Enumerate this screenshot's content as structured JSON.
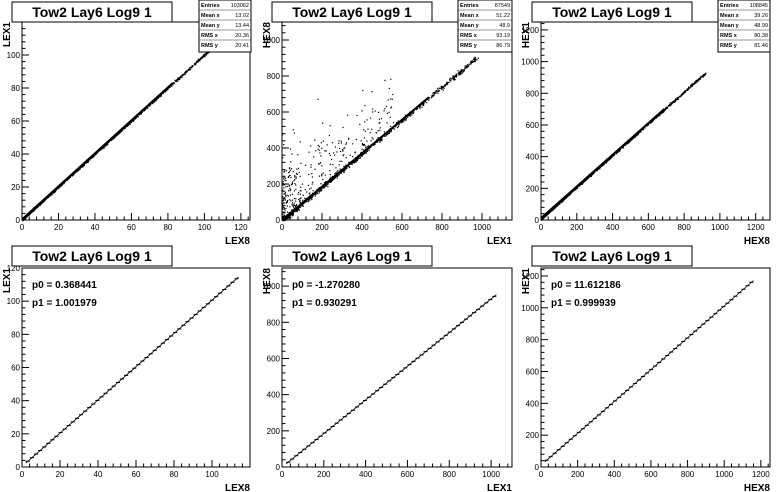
{
  "chart_data": [
    {
      "type": "scatter",
      "title": "Tow2 Lay6 Log9 1",
      "xlabel": "LEX8",
      "ylabel": "LEX1",
      "xlim": [
        0,
        125
      ],
      "ylim": [
        0,
        120
      ],
      "xticks": [
        0,
        20,
        40,
        60,
        80,
        100,
        120
      ],
      "yticks": [
        0,
        20,
        40,
        60,
        80,
        100
      ],
      "stats": [
        {
          "label": "Entries",
          "value": "103062"
        },
        {
          "label": "Mean x",
          "value": "13.02"
        },
        {
          "label": "Mean y",
          "value": "13.44"
        },
        {
          "label": "RMS x",
          "value": "20.36"
        },
        {
          "label": "RMS y",
          "value": "20.41"
        }
      ],
      "trend": {
        "slope": 1.0,
        "intercept": 0.4,
        "x_range": [
          0,
          110
        ]
      }
    },
    {
      "type": "scatter",
      "title": "Tow2 Lay6 Log9 1",
      "xlabel": "LEX1",
      "ylabel": "HEX8",
      "xlim": [
        0,
        1150
      ],
      "ylim": [
        0,
        1100
      ],
      "xticks": [
        0,
        200,
        400,
        600,
        800,
        1000
      ],
      "yticks": [
        0,
        200,
        400,
        600,
        800,
        1000
      ],
      "stats": [
        {
          "label": "Entries",
          "value": "87549"
        },
        {
          "label": "Mean x",
          "value": "51.22"
        },
        {
          "label": "Mean y",
          "value": "48.9"
        },
        {
          "label": "RMS x",
          "value": "93.19"
        },
        {
          "label": "RMS y",
          "value": "86.79"
        }
      ],
      "trend": {
        "slope": 0.93,
        "intercept": -1.3,
        "x_range": [
          0,
          980
        ]
      }
    },
    {
      "type": "scatter",
      "title": "Tow2 Lay6 Log9 1",
      "xlabel": "HEX8",
      "ylabel": "HEX1",
      "xlim": [
        0,
        1280
      ],
      "ylim": [
        0,
        1250
      ],
      "xticks": [
        0,
        200,
        400,
        600,
        800,
        1000,
        1200
      ],
      "yticks": [
        0,
        200,
        400,
        600,
        800,
        1000,
        1200
      ],
      "stats": [
        {
          "label": "Entries",
          "value": "108845"
        },
        {
          "label": "Mean x",
          "value": "39.26"
        },
        {
          "label": "Mean y",
          "value": "48.99"
        },
        {
          "label": "RMS x",
          "value": "80.38"
        },
        {
          "label": "RMS y",
          "value": "81.46"
        }
      ],
      "trend": {
        "slope": 1.0,
        "intercept": 11.6,
        "x_range": [
          0,
          920
        ]
      }
    },
    {
      "type": "line",
      "title": "Tow2 Lay6 Log9 1",
      "xlabel": "LEX8",
      "ylabel": "LEX1",
      "xlim": [
        0,
        120
      ],
      "ylim": [
        0,
        120
      ],
      "xticks": [
        0,
        20,
        40,
        60,
        80,
        100
      ],
      "yticks": [
        0,
        20,
        40,
        60,
        80,
        100,
        120
      ],
      "fit": [
        {
          "label": "p0",
          "value": "0.368441"
        },
        {
          "label": "p1",
          "value": "1.001979"
        }
      ],
      "series": [
        {
          "p0": 0.368441,
          "p1": 1.001979,
          "x_range": [
            2,
            114
          ]
        }
      ]
    },
    {
      "type": "line",
      "title": "Tow2 Lay6 Log9 1",
      "xlabel": "LEX1",
      "ylabel": "HEX8",
      "xlim": [
        0,
        1100
      ],
      "ylim": [
        0,
        1100
      ],
      "xticks": [
        0,
        200,
        400,
        600,
        800,
        1000
      ],
      "yticks": [
        0,
        200,
        400,
        600,
        800,
        1000
      ],
      "fit": [
        {
          "label": "p0",
          "value": "-1.270280"
        },
        {
          "label": "p1",
          "value": "0.930291"
        }
      ],
      "series": [
        {
          "p0": -1.27028,
          "p1": 0.930291,
          "x_range": [
            20,
            1025
          ]
        }
      ]
    },
    {
      "type": "line",
      "title": "Tow2 Lay6 Log9 1",
      "xlabel": "HEX8",
      "ylabel": "HEX1",
      "xlim": [
        0,
        1250
      ],
      "ylim": [
        0,
        1250
      ],
      "xticks": [
        0,
        200,
        400,
        600,
        800,
        1000,
        1200
      ],
      "yticks": [
        0,
        200,
        400,
        600,
        800,
        1000,
        1200
      ],
      "fit": [
        {
          "label": "p0",
          "value": "11.612186"
        },
        {
          "label": "p1",
          "value": "0.999939"
        }
      ],
      "series": [
        {
          "p0": 11.612186,
          "p1": 0.999939,
          "x_range": [
            20,
            1160
          ]
        }
      ]
    }
  ]
}
